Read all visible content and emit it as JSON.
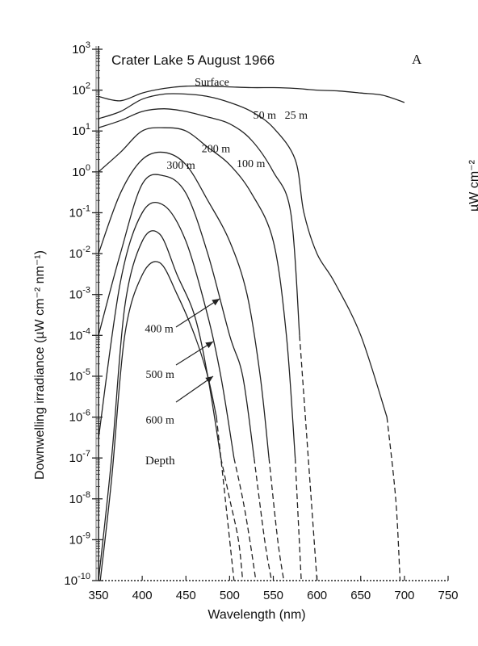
{
  "chart_data": {
    "type": "line",
    "title": "Crater Lake 5 August 1966",
    "panel_label": "A",
    "xlabel": "Wavelength (nm)",
    "ylabel": "Downwelling irradiance (µW cm⁻² nm⁻¹)",
    "cropped_right_label": "µW cm⁻²",
    "xlim": [
      350,
      750
    ],
    "ylim_log10": [
      -10,
      3
    ],
    "yscale": "log",
    "x_ticks": [
      "350",
      "400",
      "450",
      "500",
      "550",
      "600",
      "650",
      "700",
      "750"
    ],
    "y_ticks": [
      {
        "mant": "10",
        "exp": "3"
      },
      {
        "mant": "10",
        "exp": "2"
      },
      {
        "mant": "10",
        "exp": "1"
      },
      {
        "mant": "10",
        "exp": "0"
      },
      {
        "mant": "10",
        "exp": "-1"
      },
      {
        "mant": "10",
        "exp": "-2"
      },
      {
        "mant": "10",
        "exp": "-3"
      },
      {
        "mant": "10",
        "exp": "-4"
      },
      {
        "mant": "10",
        "exp": "-5"
      },
      {
        "mant": "10",
        "exp": "-6"
      },
      {
        "mant": "10",
        "exp": "-7"
      },
      {
        "mant": "10",
        "exp": "-8"
      },
      {
        "mant": "10",
        "exp": "-9"
      },
      {
        "mant": "10",
        "exp": "-10"
      }
    ],
    "annotation_depth": "Depth",
    "series": [
      {
        "name": "Surface",
        "dash_from": null,
        "x": [
          350,
          375,
          400,
          425,
          450,
          475,
          500,
          525,
          550,
          575,
          600,
          625,
          650,
          675,
          700
        ],
        "y": [
          70,
          55,
          85,
          110,
          125,
          125,
          120,
          115,
          115,
          110,
          100,
          95,
          85,
          75,
          50
        ]
      },
      {
        "name": "25 m",
        "dash_from": 680,
        "x": [
          350,
          375,
          400,
          425,
          450,
          475,
          500,
          525,
          550,
          575,
          585,
          600,
          620,
          650,
          680,
          690,
          695
        ],
        "y": [
          20,
          30,
          60,
          80,
          80,
          70,
          50,
          30,
          12,
          2,
          0.1,
          0.01,
          0.002,
          0.0001,
          1e-06,
          1e-08,
          1e-10
        ]
      },
      {
        "name": "50 m",
        "dash_from": 580,
        "x": [
          350,
          375,
          400,
          425,
          450,
          475,
          500,
          525,
          550,
          570,
          580,
          590,
          600
        ],
        "y": [
          12,
          18,
          30,
          35,
          30,
          22,
          15,
          6,
          1,
          0.1,
          0.0001,
          1e-07,
          1e-10
        ]
      },
      {
        "name": "100 m",
        "dash_from": 570,
        "x": [
          350,
          375,
          400,
          425,
          450,
          475,
          500,
          525,
          550,
          565,
          575,
          582
        ],
        "y": [
          1,
          3,
          10,
          12,
          10,
          4,
          1.5,
          0.3,
          0.02,
          0.0001,
          1e-07,
          1e-10
        ]
      },
      {
        "name": "200 m",
        "dash_from": 540,
        "x": [
          350,
          375,
          400,
          425,
          450,
          475,
          500,
          520,
          535,
          545,
          555,
          562
        ],
        "y": [
          0.01,
          0.3,
          2,
          3,
          1.5,
          0.2,
          0.02,
          0.001,
          1e-05,
          1e-07,
          1e-09,
          1e-10
        ]
      },
      {
        "name": "300 m",
        "dash_from": 520,
        "x": [
          350,
          375,
          400,
          425,
          450,
          475,
          500,
          515,
          528,
          540,
          548
        ],
        "y": [
          0.0001,
          0.01,
          0.5,
          0.8,
          0.3,
          0.01,
          0.0001,
          1e-05,
          1e-07,
          1e-09,
          1e-10
        ]
      },
      {
        "name": "400 m",
        "dash_from": 500,
        "x": [
          350,
          375,
          400,
          425,
          450,
          475,
          490,
          505,
          515,
          523,
          530
        ],
        "y": [
          3e-07,
          0.002,
          0.1,
          0.15,
          0.02,
          0.0003,
          1e-05,
          1e-07,
          1e-08,
          1e-09,
          1e-10
        ]
      },
      {
        "name": "500 m",
        "dash_from": 490,
        "x": [
          350,
          365,
          380,
          400,
          420,
          440,
          460,
          475,
          490,
          500,
          510,
          515
        ],
        "y": [
          1e-10,
          1e-07,
          0.0005,
          0.02,
          0.03,
          0.003,
          0.0003,
          1e-05,
          1e-07,
          1e-08,
          1e-09,
          1e-10
        ]
      },
      {
        "name": "600 m",
        "dash_from": 485,
        "x": [
          352,
          365,
          380,
          400,
          420,
          440,
          460,
          475,
          485,
          495,
          505
        ],
        "y": [
          1e-10,
          3e-08,
          0.0001,
          0.003,
          0.006,
          0.001,
          0.0001,
          1e-05,
          1e-06,
          1e-08,
          1e-10
        ]
      }
    ],
    "curve_labels": [
      {
        "text": "Surface",
        "series": "Surface",
        "x": 460,
        "y": 130
      },
      {
        "text": "25 m",
        "series": "25 m",
        "x": 563,
        "y": 20
      },
      {
        "text": "50 m",
        "series": "50 m",
        "x": 527,
        "y": 20
      },
      {
        "text": "100 m",
        "series": "100 m",
        "x": 508,
        "y": 1.3
      },
      {
        "text": "200 m",
        "series": "200 m",
        "x": 468,
        "y": 3
      },
      {
        "text": "300 m",
        "series": "300 m",
        "x": 428,
        "y": 1.2
      },
      {
        "text": "400 m",
        "series": "400 m",
        "x": 403,
        "y": 0.00012
      },
      {
        "text": "500 m",
        "series": "500 m",
        "x": 404,
        "y": 9e-06
      },
      {
        "text": "600 m",
        "series": "600 m",
        "x": 404,
        "y": 7e-07
      }
    ],
    "grid": false,
    "legend": "none"
  }
}
